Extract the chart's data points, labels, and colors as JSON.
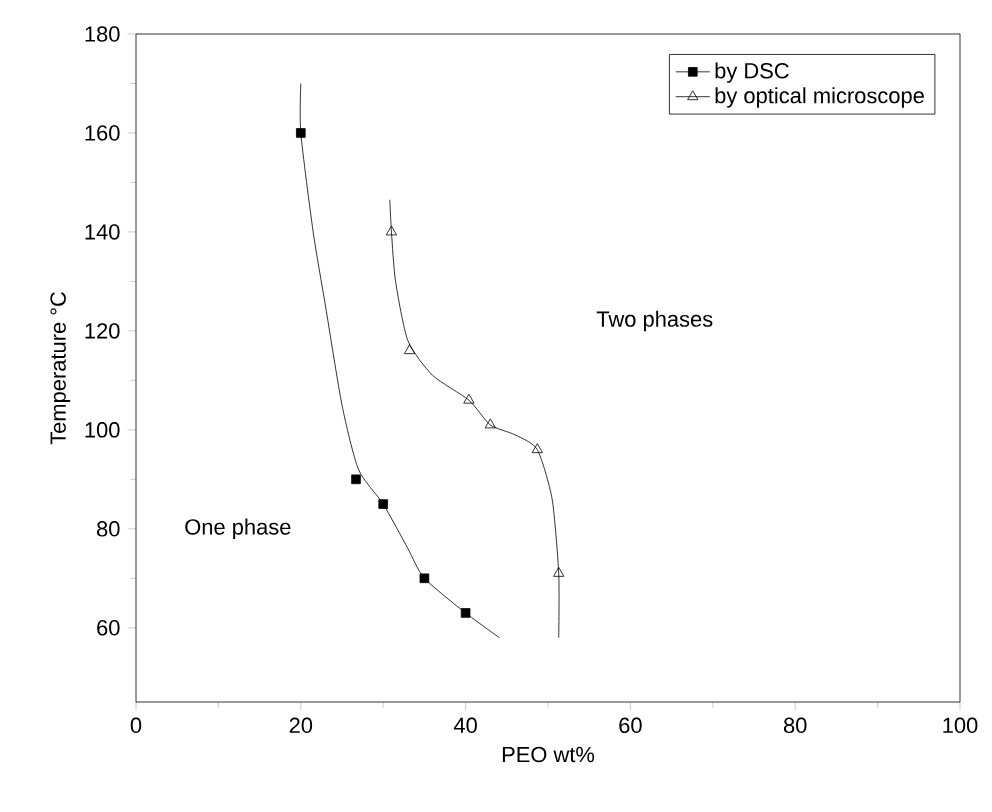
{
  "chart_data": {
    "type": "scatter",
    "xlabel": "PEO wt%",
    "ylabel": "Temperature °C",
    "xlim": [
      0,
      100
    ],
    "xticks": [
      0,
      20,
      40,
      60,
      80,
      100
    ],
    "ylim": [
      45,
      180
    ],
    "yticks": [
      60,
      80,
      100,
      120,
      140,
      160,
      180
    ],
    "legend": "top right",
    "grid": false,
    "annotations": [
      "One phase",
      "Two phases"
    ],
    "series": [
      {
        "name": "by DSC",
        "marker": "square",
        "color": "#000000",
        "x": [
          20,
          26.7,
          30,
          35,
          40
        ],
        "values": [
          160,
          90,
          85,
          70,
          63
        ]
      },
      {
        "name": "by optical microscope",
        "marker": "triangle",
        "color": "#000000",
        "x": [
          31,
          33.2,
          40.4,
          43,
          48.7,
          51.3
        ],
        "values": [
          140,
          116,
          106,
          101,
          96,
          71
        ]
      },
      {
        "type": "line",
        "marker": "none",
        "color": "#000000",
        "x": [
          20,
          20,
          21.5,
          23,
          25,
          27,
          30,
          33,
          35,
          40,
          44.1
        ],
        "values": [
          170,
          160,
          140,
          125,
          105,
          92,
          85,
          76,
          70,
          63,
          58
        ]
      },
      {
        "type": "line",
        "marker": "none",
        "color": "#000000",
        "x": [
          30.8,
          31,
          31.5,
          33,
          36,
          40.4,
          43,
          46,
          48.7,
          50.5,
          51.3,
          51.3
        ],
        "values": [
          146.5,
          140,
          130,
          118,
          111,
          106,
          101,
          99,
          96,
          86,
          71,
          58
        ]
      }
    ]
  }
}
